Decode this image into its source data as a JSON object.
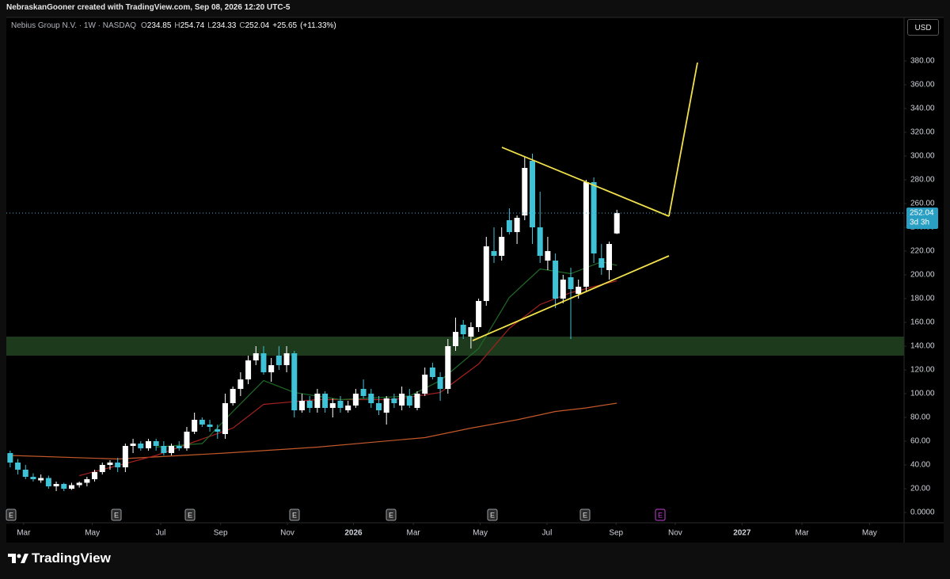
{
  "header": "NebraskanGooner created with TradingView.com, Sep 08, 2026 12:20 UTC-5",
  "footer": "TradingView",
  "currency_button": "USD",
  "chart_data": {
    "type": "candlestick",
    "ohlc_legend": {
      "symbol": "Nebius Group N.V. · 1W · NASDAQ",
      "open_prefix": "O",
      "open": 234.85,
      "high_prefix": "H",
      "high": 254.74,
      "low_prefix": "L",
      "low": 234.33,
      "close_prefix": "C",
      "close": 252.04,
      "change": {
        "value": 25.65,
        "label": "+25.65"
      },
      "change_pct": {
        "value": 11.33,
        "label": "(+11.33%)"
      }
    },
    "up_color": "#ffffff",
    "down_color": "#3fc1d6",
    "open": [
      50,
      42,
      36,
      30,
      27,
      29,
      22,
      24,
      20,
      23,
      25,
      28,
      34,
      40,
      42,
      38,
      56,
      58,
      54,
      60,
      56,
      50,
      56,
      54,
      68,
      78,
      74,
      70,
      66,
      92,
      104,
      112,
      128,
      134,
      118,
      132,
      124,
      134,
      86,
      94,
      88,
      100,
      88,
      94,
      86,
      90,
      104,
      100,
      92,
      84,
      96,
      90,
      98,
      88,
      100,
      122,
      114,
      104,
      140,
      158,
      148,
      156,
      178,
      220,
      216,
      246,
      236,
      250,
      296,
      240,
      212,
      212,
      180,
      198,
      184,
      190,
      278,
      214,
      204,
      234.85
    ],
    "high": [
      52,
      45,
      40,
      33,
      32,
      31,
      26,
      25,
      25,
      26,
      30,
      36,
      42,
      44,
      46,
      58,
      62,
      60,
      62,
      62,
      60,
      58,
      60,
      72,
      84,
      80,
      78,
      74,
      100,
      106,
      118,
      132,
      140,
      140,
      130,
      140,
      140,
      136,
      100,
      98,
      104,
      102,
      96,
      98,
      94,
      104,
      112,
      104,
      98,
      98,
      100,
      106,
      104,
      102,
      122,
      126,
      118,
      146,
      164,
      162,
      160,
      180,
      232,
      240,
      240,
      256,
      250,
      300,
      302,
      270,
      232,
      218,
      200,
      206,
      196,
      280,
      282,
      226,
      228,
      254.74
    ],
    "low": [
      38,
      32,
      28,
      26,
      25,
      20,
      18,
      18,
      19,
      21,
      22,
      26,
      32,
      36,
      34,
      34,
      50,
      52,
      52,
      52,
      48,
      48,
      52,
      52,
      66,
      72,
      68,
      62,
      62,
      90,
      98,
      108,
      124,
      116,
      110,
      120,
      118,
      80,
      84,
      84,
      84,
      84,
      80,
      84,
      84,
      88,
      96,
      88,
      82,
      74,
      88,
      86,
      88,
      86,
      98,
      112,
      94,
      100,
      136,
      146,
      138,
      152,
      174,
      210,
      212,
      234,
      226,
      246,
      226,
      210,
      204,
      172,
      176,
      146,
      180,
      186,
      210,
      200,
      196,
      234.33
    ],
    "close": [
      42,
      36,
      30,
      28,
      29,
      22,
      24,
      20,
      23,
      25,
      28,
      34,
      40,
      42,
      38,
      56,
      58,
      54,
      60,
      56,
      50,
      56,
      54,
      68,
      78,
      74,
      72,
      68,
      92,
      104,
      112,
      128,
      134,
      118,
      124,
      124,
      134,
      86,
      94,
      88,
      100,
      88,
      92,
      88,
      90,
      100,
      98,
      92,
      86,
      96,
      92,
      100,
      90,
      100,
      116,
      114,
      104,
      140,
      152,
      150,
      156,
      178,
      224,
      216,
      232,
      236,
      248,
      290,
      240,
      216,
      220,
      180,
      196,
      188,
      190,
      278,
      218,
      206,
      226,
      252.04
    ],
    "overlays": [
      {
        "color": "#c4582a",
        "x": [
          0,
          14,
          28,
          40,
          54,
          60,
          66,
          71,
          75,
          79
        ],
        "values": [
          48,
          45,
          50,
          55,
          63,
          71,
          78,
          85,
          88,
          92
        ]
      },
      {
        "color": "#a3201f",
        "x": [
          9,
          19,
          29,
          33,
          40,
          50,
          56,
          61,
          65,
          69,
          73,
          79
        ],
        "values": [
          31,
          48,
          71,
          91,
          95,
          95,
          101,
          125,
          155,
          175,
          185,
          195
        ]
      },
      {
        "color": "#1f6b26",
        "x": [
          19,
          25,
          29,
          33,
          37,
          43,
          52,
          56,
          61,
          65,
          69,
          73,
          77,
          79
        ],
        "values": [
          55,
          58,
          85,
          111,
          101,
          95,
          98,
          111,
          138,
          181,
          205,
          201,
          211,
          208
        ]
      }
    ],
    "last_price": 252.04,
    "countdown": "3d 3h",
    "xlim": [
      -0.5,
      116.4
    ],
    "xticks": [
      {
        "value": 1.75,
        "label": "Mar"
      },
      {
        "value": 10.7,
        "label": "May"
      },
      {
        "value": 19.6,
        "label": "Jul"
      },
      {
        "value": 27.4,
        "label": "Sep"
      },
      {
        "value": 36.1,
        "label": "Nov"
      },
      {
        "value": 44.7,
        "label": "2026"
      },
      {
        "value": 52.5,
        "label": "Mar"
      },
      {
        "value": 61.2,
        "label": "May"
      },
      {
        "value": 69.9,
        "label": "Jul"
      },
      {
        "value": 78.9,
        "label": "Sep"
      },
      {
        "value": 86.6,
        "label": "Nov"
      },
      {
        "value": 95.3,
        "label": "2027"
      },
      {
        "value": 103.1,
        "label": "Mar"
      },
      {
        "value": 111.9,
        "label": "May"
      }
    ],
    "ylim": [
      -8.67,
      416.67
    ],
    "yticks": [
      {
        "value": 0,
        "label": "0.0000"
      },
      {
        "value": 20,
        "label": "20.00"
      },
      {
        "value": 40,
        "label": "40.00"
      },
      {
        "value": 60,
        "label": "60.00"
      },
      {
        "value": 80,
        "label": "80.00"
      },
      {
        "value": 100,
        "label": "100.00"
      },
      {
        "value": 120,
        "label": "120.00"
      },
      {
        "value": 140,
        "label": "140.00"
      },
      {
        "value": 160,
        "label": "160.00"
      },
      {
        "value": 180,
        "label": "180.00"
      },
      {
        "value": 200,
        "label": "200.00"
      },
      {
        "value": 220,
        "label": "220.00"
      },
      {
        "value": 240,
        "label": "240.00"
      },
      {
        "value": 260,
        "label": "260.00"
      },
      {
        "value": 280,
        "label": "280.00"
      },
      {
        "value": 300,
        "label": "300.00"
      },
      {
        "value": 320,
        "label": "320.00"
      },
      {
        "value": 340,
        "label": "340.00"
      },
      {
        "value": 360,
        "label": "360.00"
      },
      {
        "value": 380,
        "label": "380.00"
      }
    ],
    "grid": false,
    "earnings_markers": [
      "E",
      "E",
      "E",
      "E",
      "E",
      "E",
      "E",
      "E"
    ]
  }
}
